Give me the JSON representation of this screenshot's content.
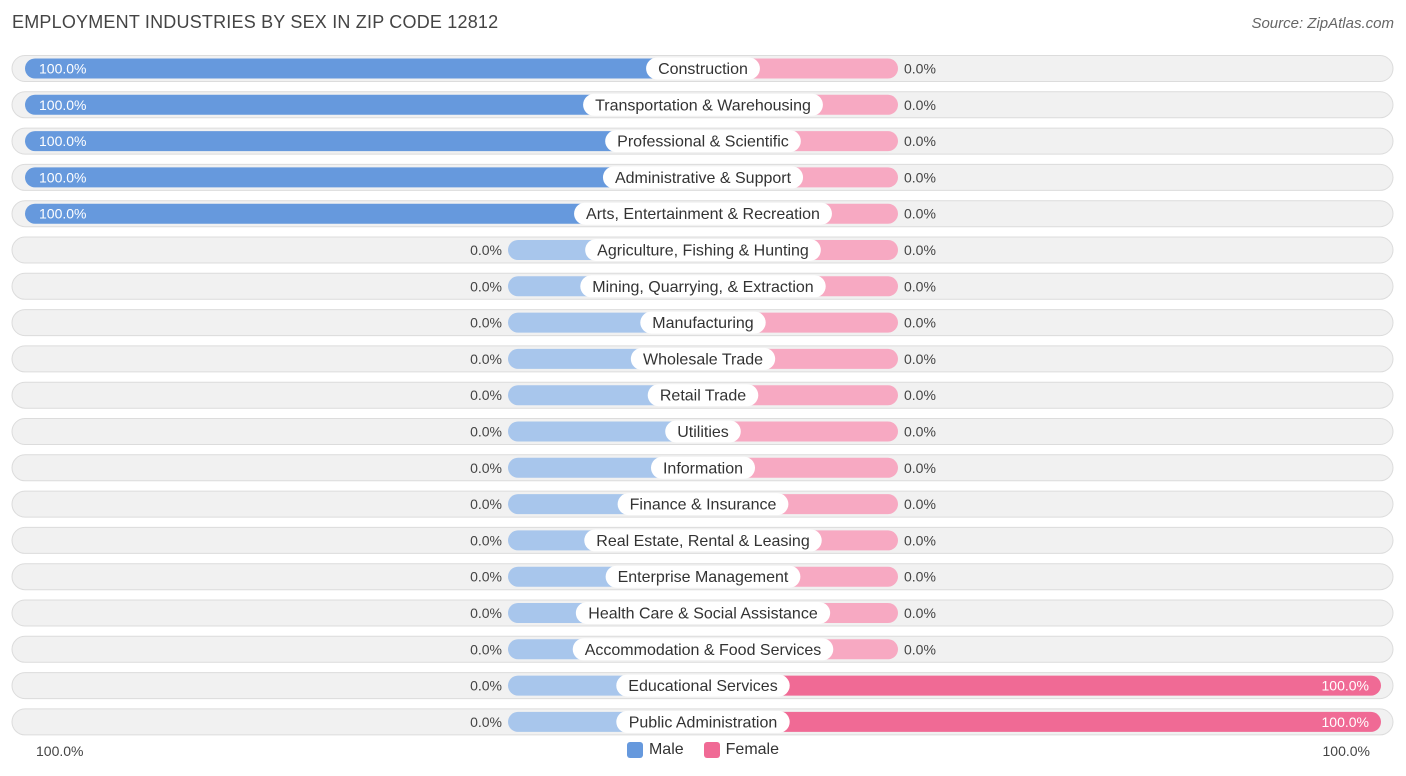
{
  "title": "EMPLOYMENT INDUSTRIES BY SEX IN ZIP CODE 12812",
  "source": "Source: ZipAtlas.com",
  "axis": {
    "left_label": "100.0%",
    "right_label": "100.0%"
  },
  "legend": {
    "male_label": "Male",
    "female_label": "Female",
    "position": "bottom-center"
  },
  "colors": {
    "male_strong": "#6699dd",
    "male_light": "#a8c6ec",
    "female_strong": "#f06a95",
    "female_light": "#f7a9c2",
    "row_background": "#f1f1f1",
    "row_border": "#dcdcdc"
  },
  "chart_data": {
    "type": "bar",
    "orientation": "horizontal-diverging",
    "title": "EMPLOYMENT INDUSTRIES BY SEX IN ZIP CODE 12812",
    "xlim": [
      -100,
      100
    ],
    "categories": [
      "Construction",
      "Transportation & Warehousing",
      "Professional & Scientific",
      "Administrative & Support",
      "Arts, Entertainment & Recreation",
      "Agriculture, Fishing & Hunting",
      "Mining, Quarrying, & Extraction",
      "Manufacturing",
      "Wholesale Trade",
      "Retail Trade",
      "Utilities",
      "Information",
      "Finance & Insurance",
      "Real Estate, Rental & Leasing",
      "Enterprise Management",
      "Health Care & Social Assistance",
      "Accommodation & Food Services",
      "Educational Services",
      "Public Administration"
    ],
    "series": [
      {
        "name": "Male",
        "values": [
          100,
          100,
          100,
          100,
          100,
          0,
          0,
          0,
          0,
          0,
          0,
          0,
          0,
          0,
          0,
          0,
          0,
          0,
          0
        ],
        "labels": [
          "100.0%",
          "100.0%",
          "100.0%",
          "100.0%",
          "100.0%",
          "0.0%",
          "0.0%",
          "0.0%",
          "0.0%",
          "0.0%",
          "0.0%",
          "0.0%",
          "0.0%",
          "0.0%",
          "0.0%",
          "0.0%",
          "0.0%",
          "0.0%",
          "0.0%"
        ]
      },
      {
        "name": "Female",
        "values": [
          0,
          0,
          0,
          0,
          0,
          0,
          0,
          0,
          0,
          0,
          0,
          0,
          0,
          0,
          0,
          0,
          0,
          100,
          100
        ],
        "labels": [
          "0.0%",
          "0.0%",
          "0.0%",
          "0.0%",
          "0.0%",
          "0.0%",
          "0.0%",
          "0.0%",
          "0.0%",
          "0.0%",
          "0.0%",
          "0.0%",
          "0.0%",
          "0.0%",
          "0.0%",
          "0.0%",
          "0.0%",
          "100.0%",
          "100.0%"
        ]
      }
    ]
  }
}
